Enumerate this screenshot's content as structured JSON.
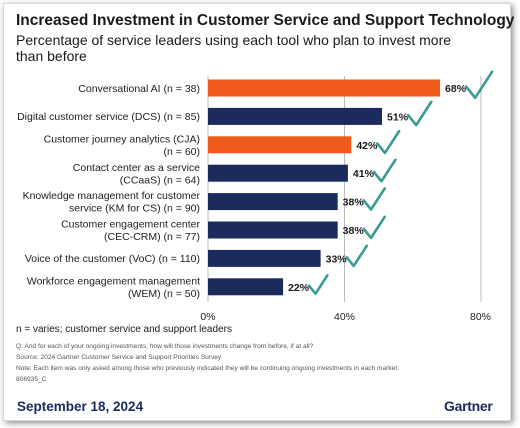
{
  "header": {
    "title": "Increased Investment in Customer Service and Support Technology",
    "subtitle": "Percentage of service leaders using each tool who plan to invest more than before"
  },
  "colors": {
    "navy": "#1c2b5e",
    "orange": "#f05a1a",
    "check": "#3a9b93",
    "grid": "#bcbcbc"
  },
  "chart_data": {
    "type": "bar",
    "orientation": "horizontal",
    "categories": [
      [
        "Conversational AI (n = 38)"
      ],
      [
        "Digital customer service (DCS) (n = 85)"
      ],
      [
        "Customer journey analytics (CJA)",
        "(n = 60)"
      ],
      [
        "Contact center as a service",
        "(CCaaS) (n = 64)"
      ],
      [
        "Knowledge management for customer",
        "service (KM for CS) (n = 90)"
      ],
      [
        "Customer engagement center",
        "(CEC-CRM) (n = 77)"
      ],
      [
        "Voice of the customer (VoC) (n = 110)"
      ],
      [
        "Workforce engagement management",
        "(WEM) (n = 50)"
      ]
    ],
    "values": [
      68,
      51,
      42,
      41,
      38,
      38,
      33,
      22
    ],
    "value_labels": [
      "68%",
      "51%",
      "42%",
      "41%",
      "38%",
      "38%",
      "33%",
      "22%"
    ],
    "highlight": [
      "orange",
      "navy",
      "orange",
      "navy",
      "navy",
      "navy",
      "navy",
      "navy"
    ],
    "xlim": [
      0,
      80
    ],
    "ticks": [
      0,
      40,
      80
    ],
    "tick_labels": [
      "0%",
      "40%",
      "80%"
    ],
    "title": "Increased Investment in Customer Service and Support Technology",
    "xlabel": "",
    "ylabel": ""
  },
  "notes": {
    "n_note": "n = varies; customer service and support leaders",
    "question": "Q: And for each of your ongoing investments, how will those investments change from before, if at all?",
    "source": "Source: 2024 Gartner Customer Service and Support Priorities Survey",
    "note": "Note: Each item was only asked among those who previously indicated they will be continuing ongoing investments in each market.",
    "id": "806935_C"
  },
  "footer": {
    "date": "September 18, 2024",
    "brand": "Gartner"
  }
}
